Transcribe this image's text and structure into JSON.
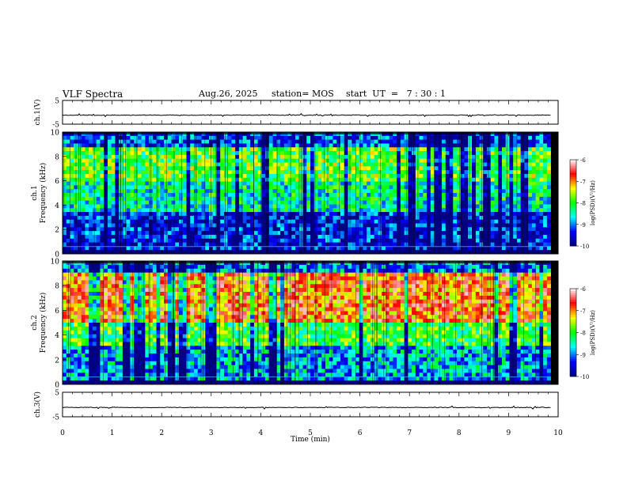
{
  "header": {
    "title": "VLF Spectra",
    "date": "Aug.26, 2025",
    "station": "station= MOS",
    "start": "start  UT  =   7 : 30 : 1"
  },
  "chart_data": [
    {
      "type": "line",
      "name": "ch1-waveform",
      "ylabel": "ch.1(V)",
      "ylim": [
        -5,
        5
      ],
      "yticks": [
        "5",
        "-5"
      ],
      "xlim": [
        0,
        10
      ],
      "baseline": -1.2
    },
    {
      "type": "heatmap",
      "name": "ch1-spectrogram",
      "ylabel": "ch.1 Frequency (kHz)",
      "ylabel_line1": "ch.1",
      "ylabel_line2": "Frequency (kHz)",
      "ylim": [
        0,
        10
      ],
      "yticks": [
        "0",
        "2",
        "4",
        "6",
        "8",
        "10"
      ],
      "xlim": [
        0,
        9.85
      ],
      "colorbar": {
        "label": "log(PSD)(V²/Hz)",
        "range": [
          -10,
          -6
        ],
        "ticks": [
          "-6",
          "-7",
          "-8",
          "-9",
          "-10"
        ]
      },
      "bands": [
        {
          "from_khz": 8.6,
          "to_khz": 10,
          "level": -9.2
        },
        {
          "from_khz": 6.0,
          "to_khz": 8.6,
          "level": -7.9
        },
        {
          "from_khz": 3.5,
          "to_khz": 6.0,
          "level": -8.4
        },
        {
          "from_khz": 0.3,
          "to_khz": 3.5,
          "level": -9.4
        }
      ]
    },
    {
      "type": "heatmap",
      "name": "ch2-spectrogram",
      "ylabel": "ch.2 Frequency (kHz)",
      "ylabel_line1": "ch.2",
      "ylabel_line2": "Frequency (kHz)",
      "ylim": [
        0,
        10
      ],
      "yticks": [
        "0",
        "2",
        "4",
        "6",
        "8",
        "10"
      ],
      "xlim": [
        0,
        9.85
      ],
      "colorbar": {
        "label": "log(PSD)(V²/Hz)",
        "range": [
          -10,
          -6
        ],
        "ticks": [
          "-6",
          "-7",
          "-8",
          "-9",
          "-10"
        ]
      },
      "bands": [
        {
          "from_khz": 9.0,
          "to_khz": 10,
          "level": -9.0
        },
        {
          "from_khz": 5.0,
          "to_khz": 9.0,
          "level": -6.9
        },
        {
          "from_khz": 3.0,
          "to_khz": 5.0,
          "level": -8.0
        },
        {
          "from_khz": 0.3,
          "to_khz": 3.0,
          "level": -8.8
        }
      ]
    },
    {
      "type": "line",
      "name": "ch3-waveform",
      "ylabel": "ch.3(V)",
      "ylim": [
        -5,
        5
      ],
      "yticks": [
        "5",
        "-5"
      ],
      "xlim": [
        0,
        10
      ],
      "baseline": -1.2
    }
  ],
  "x_axis": {
    "label": "Time  (min)",
    "range": [
      0,
      10
    ],
    "ticks": [
      "0",
      "1",
      "2",
      "3",
      "4",
      "5",
      "6",
      "7",
      "8",
      "9",
      "10"
    ]
  },
  "colors": {
    "colormap": [
      "#000080",
      "#0000ff",
      "#00ffff",
      "#00ff00",
      "#ffff00",
      "#ff0000",
      "#ffffff"
    ]
  }
}
